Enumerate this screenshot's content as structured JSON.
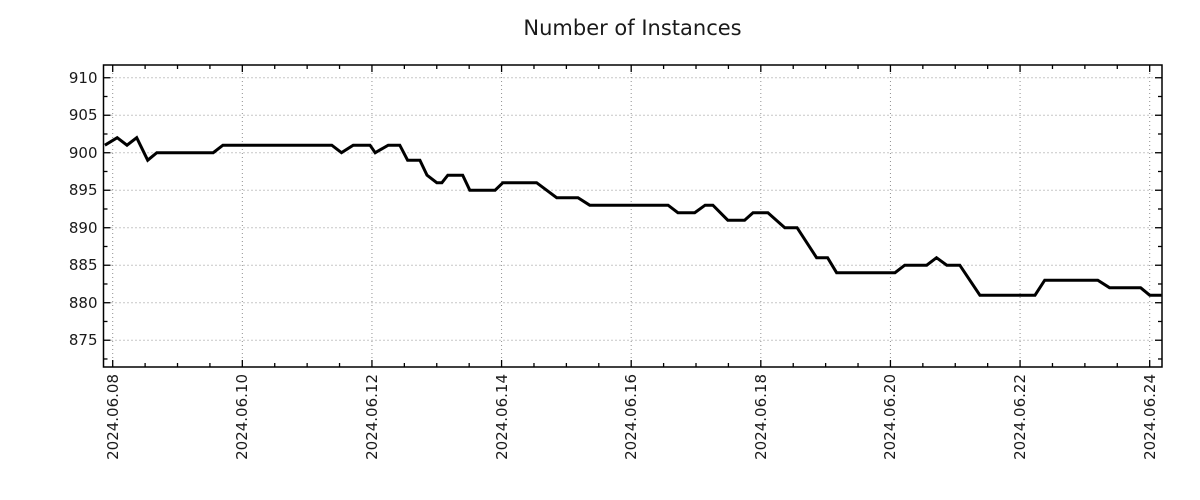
{
  "colors": {
    "line": "#000000",
    "grid": "#909090",
    "axis": "#000000",
    "text": "#1a1a1a",
    "background": "#ffffff"
  },
  "chart_data": {
    "type": "line",
    "title": "Number of Instances",
    "xlabel": "",
    "ylabel": "",
    "grid": "dotted",
    "legend": "none",
    "x_unit": "days since 2024-06-08 00:00",
    "xlim_days": [
      -0.142,
      16.19
    ],
    "ylim": [
      871.43,
      911.7
    ],
    "x_ticks": [
      {
        "day": 0,
        "label": "2024.06.08"
      },
      {
        "day": 2,
        "label": "2024.06.10"
      },
      {
        "day": 4,
        "label": "2024.06.12"
      },
      {
        "day": 6,
        "label": "2024.06.14"
      },
      {
        "day": 8,
        "label": "2024.06.16"
      },
      {
        "day": 10,
        "label": "2024.06.18"
      },
      {
        "day": 12,
        "label": "2024.06.20"
      },
      {
        "day": 14,
        "label": "2024.06.22"
      },
      {
        "day": 16,
        "label": "2024.06.24"
      }
    ],
    "x_minor_step_days": 0.5,
    "y_ticks": [
      875,
      880,
      885,
      890,
      895,
      900,
      905,
      910
    ],
    "y_minor_step": 2.5,
    "series": [
      {
        "name": "instances",
        "points": [
          [
            -0.12,
            901
          ],
          [
            0.07,
            902
          ],
          [
            0.22,
            901
          ],
          [
            0.37,
            902
          ],
          [
            0.54,
            899
          ],
          [
            0.68,
            900
          ],
          [
            1.55,
            900
          ],
          [
            1.7,
            901
          ],
          [
            3.38,
            901
          ],
          [
            3.53,
            900
          ],
          [
            3.71,
            901
          ],
          [
            3.97,
            901
          ],
          [
            4.05,
            900
          ],
          [
            4.25,
            901
          ],
          [
            4.43,
            901
          ],
          [
            4.55,
            899
          ],
          [
            4.74,
            899
          ],
          [
            4.85,
            897
          ],
          [
            5.0,
            896
          ],
          [
            5.08,
            896
          ],
          [
            5.17,
            897
          ],
          [
            5.4,
            897
          ],
          [
            5.51,
            895
          ],
          [
            5.9,
            895
          ],
          [
            6.02,
            896
          ],
          [
            6.54,
            896
          ],
          [
            6.85,
            894
          ],
          [
            7.18,
            894
          ],
          [
            7.36,
            893
          ],
          [
            8.57,
            893
          ],
          [
            8.72,
            892
          ],
          [
            8.98,
            892
          ],
          [
            9.14,
            893
          ],
          [
            9.26,
            893
          ],
          [
            9.49,
            891
          ],
          [
            9.75,
            891
          ],
          [
            9.88,
            892
          ],
          [
            10.11,
            892
          ],
          [
            10.37,
            890
          ],
          [
            10.56,
            890
          ],
          [
            10.86,
            886
          ],
          [
            11.03,
            886
          ],
          [
            11.17,
            884
          ],
          [
            12.07,
            884
          ],
          [
            12.22,
            885
          ],
          [
            12.56,
            885
          ],
          [
            12.71,
            886
          ],
          [
            12.87,
            885
          ],
          [
            13.07,
            885
          ],
          [
            13.38,
            881
          ],
          [
            14.23,
            881
          ],
          [
            14.38,
            883
          ],
          [
            15.2,
            883
          ],
          [
            15.38,
            882
          ],
          [
            15.86,
            882
          ],
          [
            16.0,
            881
          ],
          [
            16.18,
            881
          ]
        ]
      }
    ]
  }
}
